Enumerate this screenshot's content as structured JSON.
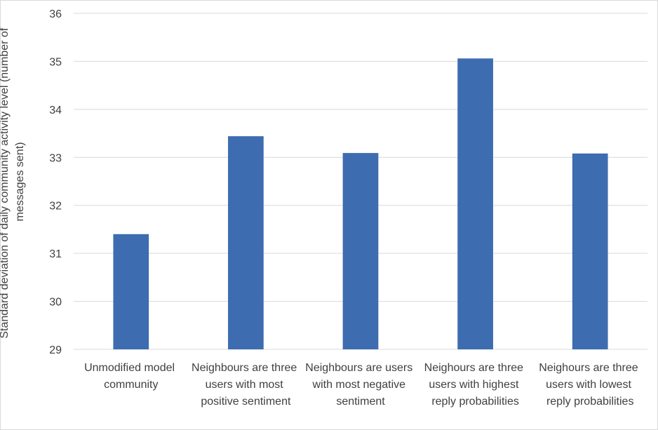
{
  "chart_data": {
    "type": "bar",
    "y_label": "Standard deviation of daily community activity level (number of messages sent)",
    "categories": [
      "Unmodified model community",
      "Neighbours are three users with most positive sentiment",
      "Neighbours are users with most negative sentiment",
      "Neighours are three users with highest reply probabilities",
      "Neighours are three users with lowest reply probabilities"
    ],
    "values": [
      31.4,
      33.44,
      33.09,
      35.06,
      33.08
    ],
    "color": "#3d6cb0",
    "ylim": [
      29,
      36
    ],
    "yticks": [
      29,
      30,
      31,
      32,
      33,
      34,
      35,
      36
    ],
    "grid": true
  }
}
